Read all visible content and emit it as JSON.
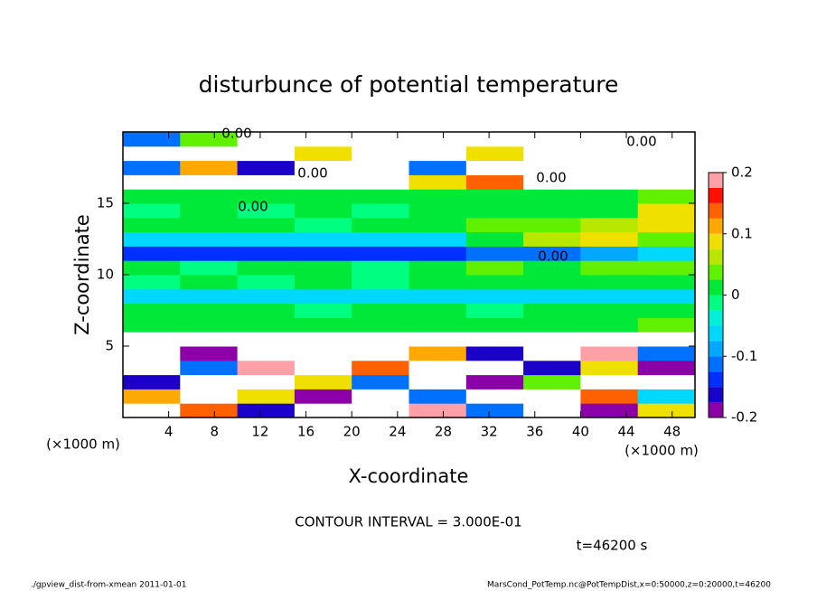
{
  "chart_data": {
    "type": "heatmap",
    "title": "disturbunce of potential temperature",
    "x_label": "X-coordinate",
    "y_label": "Z-coordinate",
    "x_unit": "(×1000 m)",
    "y_unit": "(×1000 m)",
    "xlim": [
      0,
      50
    ],
    "ylim": [
      0,
      20
    ],
    "xticks": [
      4,
      8,
      12,
      16,
      20,
      24,
      28,
      32,
      36,
      40,
      44,
      48
    ],
    "yticks": [
      5,
      10,
      15
    ],
    "x": [
      2.5,
      7.5,
      12.5,
      17.5,
      22.5,
      27.5,
      32.5,
      37.5,
      42.5,
      47.5
    ],
    "y": [
      0.5,
      1.5,
      2.5,
      3.5,
      4.5,
      5.5,
      6.5,
      7.5,
      8.5,
      9.5,
      10.5,
      11.5,
      12.5,
      13.5,
      14.5,
      15.5,
      16.5,
      17.5,
      18.5,
      19.5
    ],
    "values": [
      [
        0.3,
        0.15,
        -0.15,
        0.25,
        -0.3,
        0.18,
        -0.12,
        0.3,
        -0.2,
        0.1
      ],
      [
        0.12,
        -0.25,
        0.08,
        -0.18,
        0.3,
        -0.1,
        0.22,
        -0.3,
        0.15,
        -0.05
      ],
      [
        -0.15,
        0.3,
        -0.3,
        0.1,
        -0.12,
        0.25,
        -0.2,
        0.05,
        -0.25,
        0.3
      ],
      [
        0.25,
        -0.1,
        0.2,
        -0.3,
        0.15,
        -0.25,
        0.3,
        -0.15,
        0.1,
        -0.2
      ],
      [
        -0.3,
        -0.18,
        -0.25,
        0.3,
        -0.3,
        0.12,
        -0.15,
        -0.3,
        0.2,
        -0.12
      ],
      [
        0.3,
        0.3,
        0.25,
        0.3,
        0.3,
        0.3,
        0.3,
        0.3,
        0.3,
        0.3
      ],
      [
        0.01,
        0.02,
        0.01,
        0.01,
        0.02,
        0.01,
        0.01,
        0.01,
        0.02,
        0.03
      ],
      [
        0.005,
        0.01,
        0.01,
        0,
        0.005,
        0.01,
        0,
        0.01,
        0.02,
        0.01
      ],
      [
        -0.05,
        -0.05,
        -0.06,
        -0.05,
        -0.05,
        -0.05,
        -0.06,
        -0.05,
        -0.05,
        -0.05
      ],
      [
        0,
        0.005,
        0,
        0.005,
        0,
        0.005,
        0.01,
        0.005,
        0.01,
        0.02
      ],
      [
        0.005,
        0,
        0.01,
        0.005,
        0,
        0.01,
        0.03,
        0.02,
        0.04,
        0.05
      ],
      [
        -0.13,
        -0.13,
        -0.14,
        -0.13,
        -0.13,
        -0.13,
        -0.12,
        -0.1,
        -0.08,
        -0.06
      ],
      [
        -0.06,
        -0.07,
        -0.06,
        -0.07,
        -0.06,
        -0.05,
        0.02,
        0.06,
        0.08,
        0.04
      ],
      [
        0.005,
        0.01,
        0.005,
        0,
        0.005,
        0.01,
        0.03,
        0.05,
        0.06,
        0.1
      ],
      [
        0,
        0.005,
        0,
        0.005,
        0,
        0.005,
        0.01,
        0.02,
        0.01,
        0.08
      ],
      [
        0.005,
        0.01,
        0.01,
        0.005,
        0.01,
        0.01,
        0.005,
        0.02,
        0.01,
        0.03
      ],
      [
        0.3,
        0.3,
        0.3,
        -0.3,
        -0.3,
        0.08,
        0.15,
        -0.3,
        0.3,
        0.3
      ],
      [
        -0.1,
        0.12,
        -0.15,
        0.3,
        0.3,
        -0.12,
        0.3,
        -0.3,
        -0.3,
        -0.3
      ],
      [
        0.3,
        -0.3,
        0.3,
        0.08,
        -0.3,
        0.3,
        0.1,
        0.3,
        -0.3,
        0.3
      ],
      [
        -0.12,
        0.05,
        -0.3,
        -0.3,
        0.3,
        -0.3,
        0.3,
        -0.3,
        0.3,
        -0.3
      ]
    ],
    "colorbar": {
      "lim": [
        -0.2,
        0.2
      ],
      "ticks": [
        -0.2,
        -0.1,
        0,
        0.1,
        0.2
      ],
      "levels": [
        -0.2,
        -0.175,
        -0.15,
        -0.125,
        -0.1,
        -0.075,
        -0.05,
        -0.025,
        0,
        0.025,
        0.05,
        0.075,
        0.1,
        0.125,
        0.15,
        0.175,
        0.2
      ],
      "colors": [
        "#8c00a8",
        "#1a00c8",
        "#0030ff",
        "#0070ff",
        "#00a8ff",
        "#00d8ff",
        "#00f0d8",
        "#00ff80",
        "#00e838",
        "#60f000",
        "#b8e800",
        "#f0e000",
        "#ffa800",
        "#ff6000",
        "#ff1000",
        "#ffa0a8"
      ]
    },
    "contour_labels": [
      "0.00",
      "0.00",
      "0.00",
      "0.00",
      "0.00",
      "0.00"
    ],
    "contour_interval": "CONTOUR INTERVAL = 3.000E-01",
    "time_label": "t=46200 s",
    "footer_left": "./gpview_dist-from-xmean  2011-01-01",
    "footer_right": "MarsCond_PotTemp.nc@PotTempDist,x=0:50000,z=0:20000,t=46200"
  }
}
